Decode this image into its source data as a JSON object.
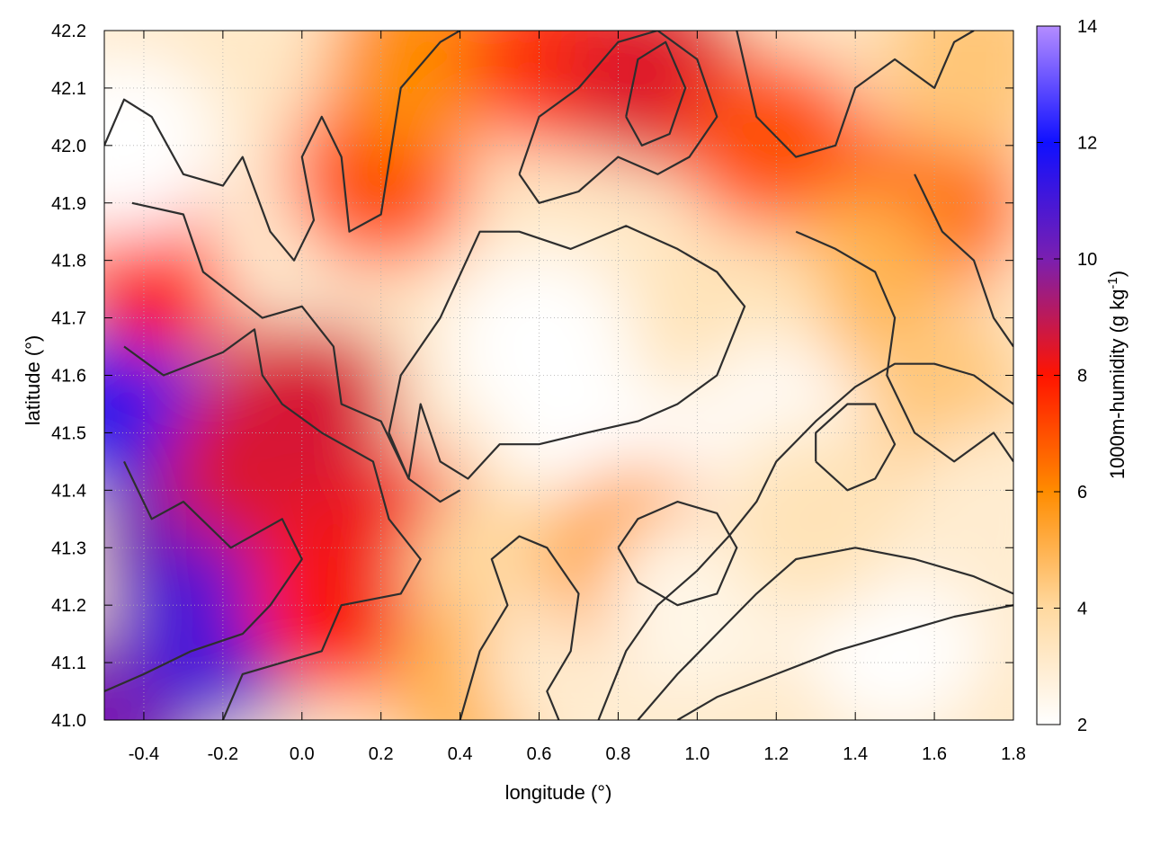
{
  "chart_data": {
    "type": "heatmap",
    "xlabel": "longitude (°)",
    "ylabel": "latitude (°)",
    "colorbar_label": "1000m-humidity (g kg-1)",
    "colorbar_label_main": "1000m-humidity (g kg",
    "colorbar_label_sup": "-1",
    "colorbar_label_close": ")",
    "xlim": [
      -0.5,
      1.8
    ],
    "ylim": [
      41.0,
      42.2
    ],
    "clim": [
      2,
      14
    ],
    "x_ticks": [
      "-0.4",
      "-0.2",
      "0.0",
      "0.2",
      "0.4",
      "0.6",
      "0.8",
      "1.0",
      "1.2",
      "1.4",
      "1.6",
      "1.8"
    ],
    "x_tick_values": [
      -0.4,
      -0.2,
      0.0,
      0.2,
      0.4,
      0.6,
      0.8,
      1.0,
      1.2,
      1.4,
      1.6,
      1.8
    ],
    "y_ticks": [
      "41.0",
      "41.1",
      "41.2",
      "41.3",
      "41.4",
      "41.5",
      "41.6",
      "41.7",
      "41.8",
      "41.9",
      "42.0",
      "42.1",
      "42.2"
    ],
    "y_tick_values": [
      41.0,
      41.1,
      41.2,
      41.3,
      41.4,
      41.5,
      41.6,
      41.7,
      41.8,
      41.9,
      42.0,
      42.1,
      42.2
    ],
    "colorbar_ticks": [
      "2",
      "4",
      "6",
      "8",
      "10",
      "12",
      "14"
    ],
    "colorbar_tick_values": [
      2,
      4,
      6,
      8,
      10,
      12,
      14
    ],
    "colormap": [
      {
        "value": 2,
        "color": "#ffffff"
      },
      {
        "value": 4,
        "color": "#ffd9a0"
      },
      {
        "value": 6,
        "color": "#ff8c00"
      },
      {
        "value": 8,
        "color": "#ff1400"
      },
      {
        "value": 10,
        "color": "#7a1fb0"
      },
      {
        "value": 12,
        "color": "#1010ff"
      },
      {
        "value": 14,
        "color": "#b48cff"
      }
    ],
    "field_regions": [
      {
        "lon": -0.5,
        "lat": 41.0,
        "value": 10.0
      },
      {
        "lon": -0.45,
        "lat": 41.55,
        "value": 11.5
      },
      {
        "lon": -0.3,
        "lat": 41.3,
        "value": 10.2
      },
      {
        "lon": -0.2,
        "lat": 41.15,
        "value": 11.0
      },
      {
        "lon": -0.1,
        "lat": 41.45,
        "value": 8.5
      },
      {
        "lon": 0.1,
        "lat": 41.2,
        "value": 8.0
      },
      {
        "lon": 0.25,
        "lat": 41.3,
        "value": 8.2
      },
      {
        "lon": 0.0,
        "lat": 41.55,
        "value": 8.6
      },
      {
        "lon": -0.35,
        "lat": 41.8,
        "value": 8.0
      },
      {
        "lon": -0.45,
        "lat": 42.0,
        "value": 2.0
      },
      {
        "lon": 0.0,
        "lat": 41.85,
        "value": 3.0
      },
      {
        "lon": 0.2,
        "lat": 41.95,
        "value": 7.0
      },
      {
        "lon": 0.3,
        "lat": 42.15,
        "value": 6.0
      },
      {
        "lon": 0.65,
        "lat": 42.15,
        "value": 7.5
      },
      {
        "lon": 0.9,
        "lat": 42.12,
        "value": 8.5
      },
      {
        "lon": 1.2,
        "lat": 42.0,
        "value": 7.0
      },
      {
        "lon": 1.6,
        "lat": 41.9,
        "value": 6.5
      },
      {
        "lon": 1.7,
        "lat": 42.15,
        "value": 4.5
      },
      {
        "lon": 1.4,
        "lat": 41.75,
        "value": 5.0
      },
      {
        "lon": 1.6,
        "lat": 41.55,
        "value": 4.5
      },
      {
        "lon": 1.1,
        "lat": 41.7,
        "value": 3.5
      },
      {
        "lon": 0.6,
        "lat": 41.65,
        "value": 2.0
      },
      {
        "lon": 0.75,
        "lat": 41.45,
        "value": 2.0
      },
      {
        "lon": 1.2,
        "lat": 41.5,
        "value": 2.2
      },
      {
        "lon": 0.5,
        "lat": 41.25,
        "value": 4.0
      },
      {
        "lon": 0.45,
        "lat": 41.05,
        "value": 5.0
      },
      {
        "lon": 0.7,
        "lat": 41.1,
        "value": 3.0
      },
      {
        "lon": 0.85,
        "lat": 41.28,
        "value": 5.5
      },
      {
        "lon": 1.0,
        "lat": 41.2,
        "value": 2.5
      },
      {
        "lon": 1.5,
        "lat": 41.15,
        "value": 2.0
      },
      {
        "lon": 1.3,
        "lat": 41.35,
        "value": 3.5
      },
      {
        "lon": 1.75,
        "lat": 41.35,
        "value": 3.0
      }
    ],
    "contours": [
      [
        [
          -0.5,
          42.0
        ],
        [
          -0.45,
          42.08
        ],
        [
          -0.38,
          42.05
        ],
        [
          -0.3,
          41.95
        ],
        [
          -0.2,
          41.93
        ],
        [
          -0.15,
          41.98
        ],
        [
          -0.08,
          41.85
        ],
        [
          -0.02,
          41.8
        ],
        [
          0.03,
          41.87
        ],
        [
          0.0,
          41.98
        ],
        [
          0.05,
          42.05
        ],
        [
          0.1,
          41.98
        ],
        [
          0.12,
          41.85
        ],
        [
          0.2,
          41.88
        ],
        [
          0.25,
          42.1
        ],
        [
          0.35,
          42.18
        ],
        [
          0.4,
          42.2
        ]
      ],
      [
        [
          -0.43,
          41.9
        ],
        [
          -0.3,
          41.88
        ],
        [
          -0.25,
          41.78
        ],
        [
          -0.1,
          41.7
        ],
        [
          0.0,
          41.72
        ],
        [
          0.08,
          41.65
        ],
        [
          0.1,
          41.55
        ],
        [
          0.2,
          41.52
        ],
        [
          0.27,
          41.42
        ],
        [
          0.35,
          41.38
        ],
        [
          0.4,
          41.4
        ]
      ],
      [
        [
          0.27,
          41.42
        ],
        [
          0.22,
          41.5
        ],
        [
          0.25,
          41.6
        ],
        [
          0.35,
          41.7
        ],
        [
          0.45,
          41.85
        ],
        [
          0.55,
          41.85
        ],
        [
          0.68,
          41.82
        ],
        [
          0.82,
          41.86
        ],
        [
          0.95,
          41.82
        ],
        [
          1.05,
          41.78
        ],
        [
          1.12,
          41.72
        ],
        [
          1.05,
          41.6
        ],
        [
          0.95,
          41.55
        ],
        [
          0.85,
          41.52
        ],
        [
          0.72,
          41.5
        ],
        [
          0.6,
          41.48
        ],
        [
          0.5,
          41.48
        ],
        [
          0.42,
          41.42
        ],
        [
          0.35,
          41.45
        ],
        [
          0.3,
          41.55
        ],
        [
          0.27,
          41.42
        ]
      ],
      [
        [
          -0.45,
          41.65
        ],
        [
          -0.35,
          41.6
        ],
        [
          -0.2,
          41.64
        ],
        [
          -0.12,
          41.68
        ],
        [
          -0.1,
          41.6
        ],
        [
          -0.05,
          41.55
        ],
        [
          0.05,
          41.5
        ],
        [
          0.18,
          41.45
        ],
        [
          0.22,
          41.35
        ],
        [
          0.3,
          41.28
        ],
        [
          0.25,
          41.22
        ],
        [
          0.1,
          41.2
        ],
        [
          0.05,
          41.12
        ],
        [
          -0.05,
          41.1
        ],
        [
          -0.15,
          41.08
        ],
        [
          -0.2,
          41.0
        ]
      ],
      [
        [
          -0.45,
          41.45
        ],
        [
          -0.38,
          41.35
        ],
        [
          -0.3,
          41.38
        ],
        [
          -0.18,
          41.3
        ],
        [
          -0.05,
          41.35
        ],
        [
          0.0,
          41.28
        ],
        [
          -0.08,
          41.2
        ],
        [
          -0.15,
          41.15
        ],
        [
          -0.28,
          41.12
        ],
        [
          -0.4,
          41.08
        ],
        [
          -0.5,
          41.05
        ]
      ],
      [
        [
          0.4,
          41.0
        ],
        [
          0.45,
          41.12
        ],
        [
          0.52,
          41.2
        ],
        [
          0.48,
          41.28
        ],
        [
          0.55,
          41.32
        ],
        [
          0.62,
          41.3
        ],
        [
          0.7,
          41.22
        ],
        [
          0.68,
          41.12
        ],
        [
          0.62,
          41.05
        ],
        [
          0.65,
          41.0
        ]
      ],
      [
        [
          0.75,
          41.0
        ],
        [
          0.82,
          41.12
        ],
        [
          0.9,
          41.2
        ],
        [
          1.0,
          41.26
        ],
        [
          1.08,
          41.32
        ],
        [
          1.15,
          41.38
        ],
        [
          1.2,
          41.45
        ],
        [
          1.3,
          41.52
        ],
        [
          1.4,
          41.58
        ],
        [
          1.5,
          41.62
        ],
        [
          1.6,
          41.62
        ],
        [
          1.7,
          41.6
        ],
        [
          1.8,
          41.55
        ]
      ],
      [
        [
          0.85,
          41.0
        ],
        [
          0.95,
          41.08
        ],
        [
          1.05,
          41.15
        ],
        [
          1.15,
          41.22
        ],
        [
          1.25,
          41.28
        ],
        [
          1.4,
          41.3
        ],
        [
          1.55,
          41.28
        ],
        [
          1.7,
          41.25
        ],
        [
          1.8,
          41.22
        ]
      ],
      [
        [
          0.95,
          41.0
        ],
        [
          1.05,
          41.04
        ],
        [
          1.2,
          41.08
        ],
        [
          1.35,
          41.12
        ],
        [
          1.5,
          41.15
        ],
        [
          1.65,
          41.18
        ],
        [
          1.8,
          41.2
        ]
      ],
      [
        [
          0.8,
          41.3
        ],
        [
          0.85,
          41.35
        ],
        [
          0.95,
          41.38
        ],
        [
          1.05,
          41.36
        ],
        [
          1.1,
          41.3
        ],
        [
          1.05,
          41.22
        ],
        [
          0.95,
          41.2
        ],
        [
          0.85,
          41.24
        ],
        [
          0.8,
          41.3
        ]
      ],
      [
        [
          0.55,
          41.95
        ],
        [
          0.6,
          42.05
        ],
        [
          0.7,
          42.1
        ],
        [
          0.8,
          42.18
        ],
        [
          0.9,
          42.2
        ],
        [
          1.0,
          42.15
        ],
        [
          1.05,
          42.05
        ],
        [
          0.98,
          41.98
        ],
        [
          0.9,
          41.95
        ],
        [
          0.8,
          41.98
        ],
        [
          0.7,
          41.92
        ],
        [
          0.6,
          41.9
        ],
        [
          0.55,
          41.95
        ]
      ],
      [
        [
          0.82,
          42.05
        ],
        [
          0.85,
          42.15
        ],
        [
          0.92,
          42.18
        ],
        [
          0.97,
          42.1
        ],
        [
          0.93,
          42.02
        ],
        [
          0.86,
          42.0
        ],
        [
          0.82,
          42.05
        ]
      ],
      [
        [
          1.1,
          42.2
        ],
        [
          1.15,
          42.05
        ],
        [
          1.25,
          41.98
        ],
        [
          1.35,
          42.0
        ],
        [
          1.4,
          42.1
        ],
        [
          1.5,
          42.15
        ],
        [
          1.6,
          42.1
        ],
        [
          1.65,
          42.18
        ],
        [
          1.7,
          42.2
        ]
      ],
      [
        [
          1.25,
          41.85
        ],
        [
          1.35,
          41.82
        ],
        [
          1.45,
          41.78
        ],
        [
          1.5,
          41.7
        ],
        [
          1.48,
          41.6
        ],
        [
          1.55,
          41.5
        ],
        [
          1.65,
          41.45
        ],
        [
          1.75,
          41.5
        ],
        [
          1.8,
          41.45
        ]
      ],
      [
        [
          1.55,
          41.95
        ],
        [
          1.62,
          41.85
        ],
        [
          1.7,
          41.8
        ],
        [
          1.75,
          41.7
        ],
        [
          1.8,
          41.65
        ]
      ],
      [
        [
          1.3,
          41.45
        ],
        [
          1.38,
          41.4
        ],
        [
          1.45,
          41.42
        ],
        [
          1.5,
          41.48
        ],
        [
          1.45,
          41.55
        ],
        [
          1.38,
          41.55
        ],
        [
          1.3,
          41.5
        ],
        [
          1.3,
          41.45
        ]
      ]
    ]
  }
}
